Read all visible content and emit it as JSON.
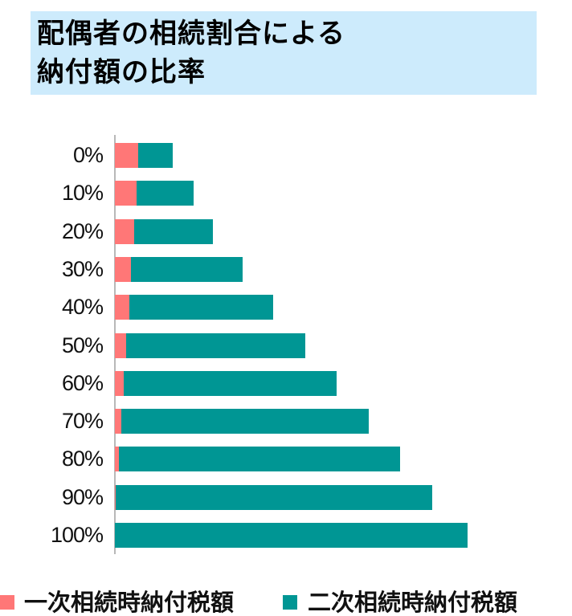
{
  "title": {
    "line1": "配偶者の相続割合による",
    "line2": "納付額の比率"
  },
  "colors": {
    "first": "#ff7777",
    "second": "#009694",
    "title_bg": "#cdebfc"
  },
  "legend": {
    "first": "一次相続時納付税額",
    "second": "二次相続時納付税額"
  },
  "chart_data": {
    "type": "bar",
    "orientation": "horizontal",
    "stacked": true,
    "title": "配偶者の相続割合による納付額の比率",
    "categories": [
      "0%",
      "10%",
      "20%",
      "30%",
      "40%",
      "50%",
      "60%",
      "70%",
      "80%",
      "90%",
      "100%"
    ],
    "series": [
      {
        "name": "一次相続時納付税額",
        "color": "#ff7777",
        "values": [
          29,
          27,
          24,
          20,
          18,
          14,
          11,
          8,
          5,
          1,
          0
        ]
      },
      {
        "name": "二次相続時納付税額",
        "color": "#009694",
        "values": [
          43,
          71,
          98,
          139,
          179,
          223,
          265,
          308,
          350,
          394,
          439
        ]
      }
    ],
    "xlabel": "",
    "ylabel": "",
    "grid": false,
    "legend_position": "bottom",
    "units": "relative pixel length (no value axis shown)"
  }
}
